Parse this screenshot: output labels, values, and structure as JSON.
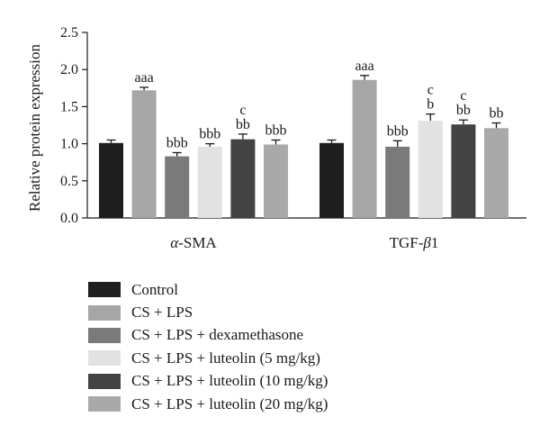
{
  "chart_data": {
    "type": "bar",
    "ylabel": "Relative protein expression",
    "ylim": [
      0,
      2.5
    ],
    "yticks": [
      "0.0",
      "0.5",
      "1.0",
      "1.5",
      "2.0",
      "2.5"
    ],
    "categories": [
      "α-SMA",
      "TGF-β1"
    ],
    "grid": false,
    "legend_position": "bottom",
    "series": [
      {
        "name": "Control",
        "color": "#1e1e1e",
        "values": [
          1.01,
          1.01
        ],
        "errors": [
          0.04,
          0.04
        ],
        "labels": [
          "",
          ""
        ]
      },
      {
        "name": "CS + LPS",
        "color": "#a6a6a6",
        "values": [
          1.72,
          1.86
        ],
        "errors": [
          0.04,
          0.06
        ],
        "labels": [
          "aaa",
          "aaa"
        ]
      },
      {
        "name": "CS + LPS + dexamethasone",
        "color": "#7a7a7a",
        "values": [
          0.83,
          0.96
        ],
        "errors": [
          0.05,
          0.08
        ],
        "labels": [
          "bbb",
          "bbb"
        ]
      },
      {
        "name": "CS + LPS + luteolin (5 mg/kg)",
        "color": "#e2e2e2",
        "values": [
          0.96,
          1.31
        ],
        "errors": [
          0.04,
          0.09
        ],
        "labels": [
          "bbb",
          "c\nb"
        ]
      },
      {
        "name": "CS + LPS + luteolin (10 mg/kg)",
        "color": "#434343",
        "values": [
          1.06,
          1.26
        ],
        "errors": [
          0.07,
          0.06
        ],
        "labels": [
          "c\nbb",
          "c\nbb"
        ]
      },
      {
        "name": "CS + LPS + luteolin (20 mg/kg)",
        "color": "#a9a9a9",
        "values": [
          0.99,
          1.21
        ],
        "errors": [
          0.06,
          0.07
        ],
        "labels": [
          "bbb",
          "bb"
        ]
      }
    ]
  }
}
